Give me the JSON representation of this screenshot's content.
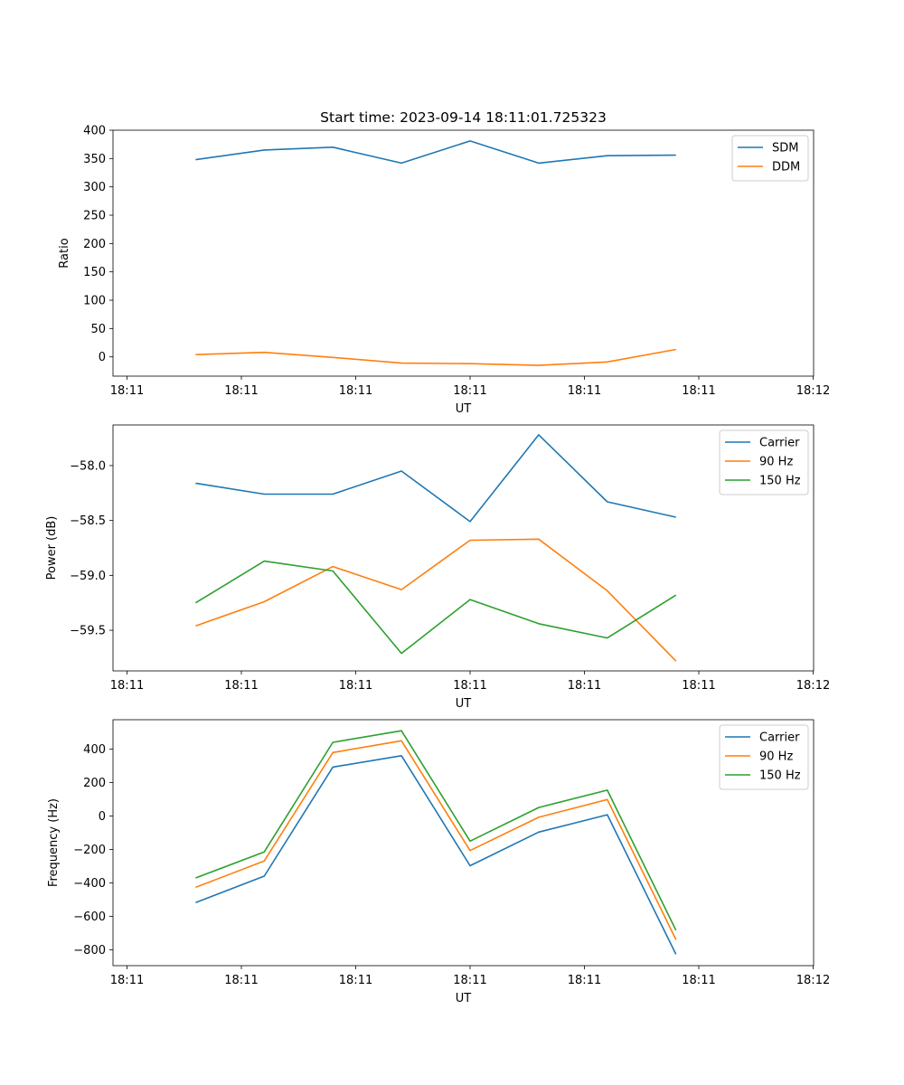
{
  "chart_data": [
    {
      "type": "line",
      "title": "Start time: 2023-09-14 18:11:01.725323",
      "xlabel": "UT",
      "ylabel": "Ratio",
      "x": [
        0.6,
        1.2,
        1.8,
        2.4,
        3.0,
        3.6,
        4.2,
        4.8
      ],
      "xlim": [
        0.0,
        6.0
      ],
      "xticks": [
        0,
        1,
        2,
        3,
        4,
        5,
        6
      ],
      "xtick_labels": [
        "18:11",
        "18:11",
        "18:11",
        "18:11",
        "18:11",
        "18:11",
        "18:12"
      ],
      "ylim": [
        -34,
        400
      ],
      "yticks": [
        0,
        50,
        100,
        150,
        200,
        250,
        300,
        350,
        400
      ],
      "ytick_labels": [
        "0",
        "50",
        "100",
        "150",
        "200",
        "250",
        "300",
        "350",
        "400"
      ],
      "legend": "top-right",
      "series": [
        {
          "name": "SDM",
          "color": "#1f77b4",
          "values": [
            348,
            365,
            370,
            342,
            381,
            342,
            355,
            356
          ]
        },
        {
          "name": "DDM",
          "color": "#ff7f0e",
          "values": [
            4,
            8,
            -1,
            -11,
            -12,
            -15,
            -9,
            13
          ]
        }
      ]
    },
    {
      "type": "line",
      "title": "",
      "xlabel": "UT",
      "ylabel": "Power (dB)",
      "x": [
        0.6,
        1.2,
        1.8,
        2.4,
        3.0,
        3.6,
        4.2,
        4.8
      ],
      "xlim": [
        0.0,
        6.0
      ],
      "xticks": [
        0,
        1,
        2,
        3,
        4,
        5,
        6
      ],
      "xtick_labels": [
        "18:11",
        "18:11",
        "18:11",
        "18:11",
        "18:11",
        "18:11",
        "18:12"
      ],
      "ylim": [
        -59.87,
        -57.63
      ],
      "yticks": [
        -58.0,
        -58.5,
        -59.0,
        -59.5
      ],
      "ytick_labels": [
        "−58.0",
        "−58.5",
        "−59.0",
        "−59.5"
      ],
      "legend": "top-right",
      "series": [
        {
          "name": "Carrier",
          "color": "#1f77b4",
          "values": [
            -58.16,
            -58.26,
            -58.26,
            -58.05,
            -58.51,
            -57.72,
            -58.33,
            -58.47
          ]
        },
        {
          "name": "90 Hz",
          "color": "#ff7f0e",
          "values": [
            -59.46,
            -59.24,
            -58.92,
            -59.13,
            -58.68,
            -58.67,
            -59.14,
            -59.78
          ]
        },
        {
          "name": "150 Hz",
          "color": "#2ca02c",
          "values": [
            -59.25,
            -58.87,
            -58.96,
            -59.71,
            -59.22,
            -59.44,
            -59.57,
            -59.18
          ]
        }
      ]
    },
    {
      "type": "line",
      "title": "",
      "xlabel": "UT",
      "ylabel": "Frequency (Hz)",
      "x": [
        0.6,
        1.2,
        1.8,
        2.4,
        3.0,
        3.6,
        4.2,
        4.8
      ],
      "xlim": [
        0.0,
        6.0
      ],
      "xticks": [
        0,
        1,
        2,
        3,
        4,
        5,
        6
      ],
      "xtick_labels": [
        "18:11",
        "18:11",
        "18:11",
        "18:11",
        "18:11",
        "18:11",
        "18:12"
      ],
      "ylim": [
        -894,
        576
      ],
      "yticks": [
        -800,
        -600,
        -400,
        -200,
        0,
        200,
        400
      ],
      "ytick_labels": [
        "−800",
        "−600",
        "−400",
        "−200",
        "0",
        "200",
        "400"
      ],
      "legend": "top-right",
      "series": [
        {
          "name": "Carrier",
          "color": "#1f77b4",
          "values": [
            -517,
            -359,
            293,
            361,
            -297,
            -96,
            8,
            -826
          ]
        },
        {
          "name": "90 Hz",
          "color": "#ff7f0e",
          "values": [
            -426,
            -268,
            380,
            450,
            -206,
            -7,
            99,
            -738
          ]
        },
        {
          "name": "150 Hz",
          "color": "#2ca02c",
          "values": [
            -370,
            -214,
            441,
            510,
            -150,
            51,
            155,
            -682
          ]
        }
      ]
    }
  ]
}
